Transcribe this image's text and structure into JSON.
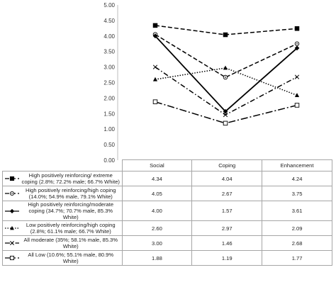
{
  "chart_data": {
    "type": "line",
    "categories": [
      "Social",
      "Coping",
      "Enhancement"
    ],
    "ylim": [
      0,
      5
    ],
    "yticks": [
      "0.00",
      "0.50",
      "1.00",
      "1.50",
      "2.00",
      "2.50",
      "3.00",
      "3.50",
      "4.00",
      "4.50",
      "5.00"
    ],
    "grid": false,
    "legend": "data table below plot",
    "series": [
      {
        "name": "High positively reinforcing/ extreme coping (2.8%; 72.2% male; 66.7% White)",
        "values": [
          4.34,
          4.04,
          4.24
        ],
        "values_text": [
          "4.34",
          "4.04",
          "4.24"
        ],
        "dash": "dashed",
        "marker": "square-filled"
      },
      {
        "name": "High positively reinforcing/high coping (14.0%; 54.9% male, 79.1% White)",
        "values": [
          4.05,
          2.67,
          3.75
        ],
        "values_text": [
          "4.05",
          "2.67",
          "3.75"
        ],
        "dash": "dashed",
        "marker": "circle-open"
      },
      {
        "name": "High positively reinforcing/moderate coping (34.7%; 70.7% male, 85.3% White)",
        "values": [
          4.0,
          1.57,
          3.61
        ],
        "values_text": [
          "4.00",
          "1.57",
          "3.61"
        ],
        "dash": "solid",
        "marker": "diamond-filled"
      },
      {
        "name": "Low positively reinforcing/high coping (2.8%; 61.1% male; 66.7% White)",
        "values": [
          2.6,
          2.97,
          2.09
        ],
        "values_text": [
          "2.60",
          "2.97",
          "2.09"
        ],
        "dash": "dotted",
        "marker": "triangle-filled"
      },
      {
        "name": "All moderate (35%; 58.1% male, 85.3% White)",
        "values": [
          3.0,
          1.46,
          2.68
        ],
        "values_text": [
          "3.00",
          "1.46",
          "2.68"
        ],
        "dash": "dashdot",
        "marker": "x"
      },
      {
        "name": "All Low (10.6%; 55.1% male, 80.9% White)",
        "values": [
          1.88,
          1.19,
          1.77
        ],
        "values_text": [
          "1.88",
          "1.19",
          "1.77"
        ],
        "dash": "longdashdot",
        "marker": "square-open"
      }
    ]
  }
}
